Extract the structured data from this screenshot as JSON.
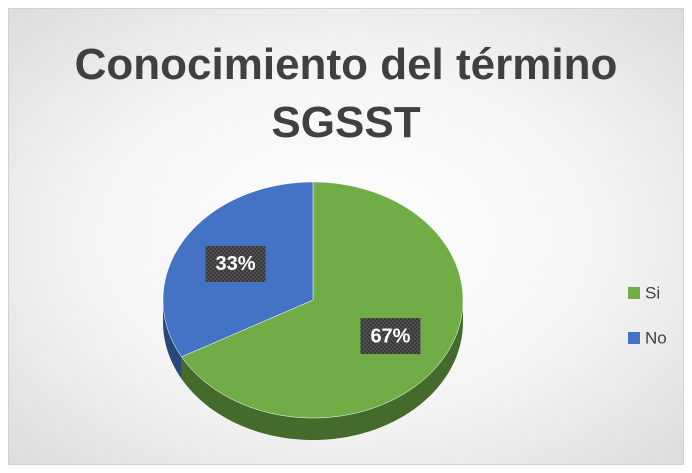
{
  "chart_data": {
    "type": "pie",
    "title": "Conocimiento del término SGSST",
    "categories": [
      "Si",
      "No"
    ],
    "values": [
      67,
      33
    ],
    "value_labels": [
      "67%",
      "33%"
    ],
    "colors": [
      "#70ad47",
      "#4472c4"
    ],
    "legend": "right"
  }
}
